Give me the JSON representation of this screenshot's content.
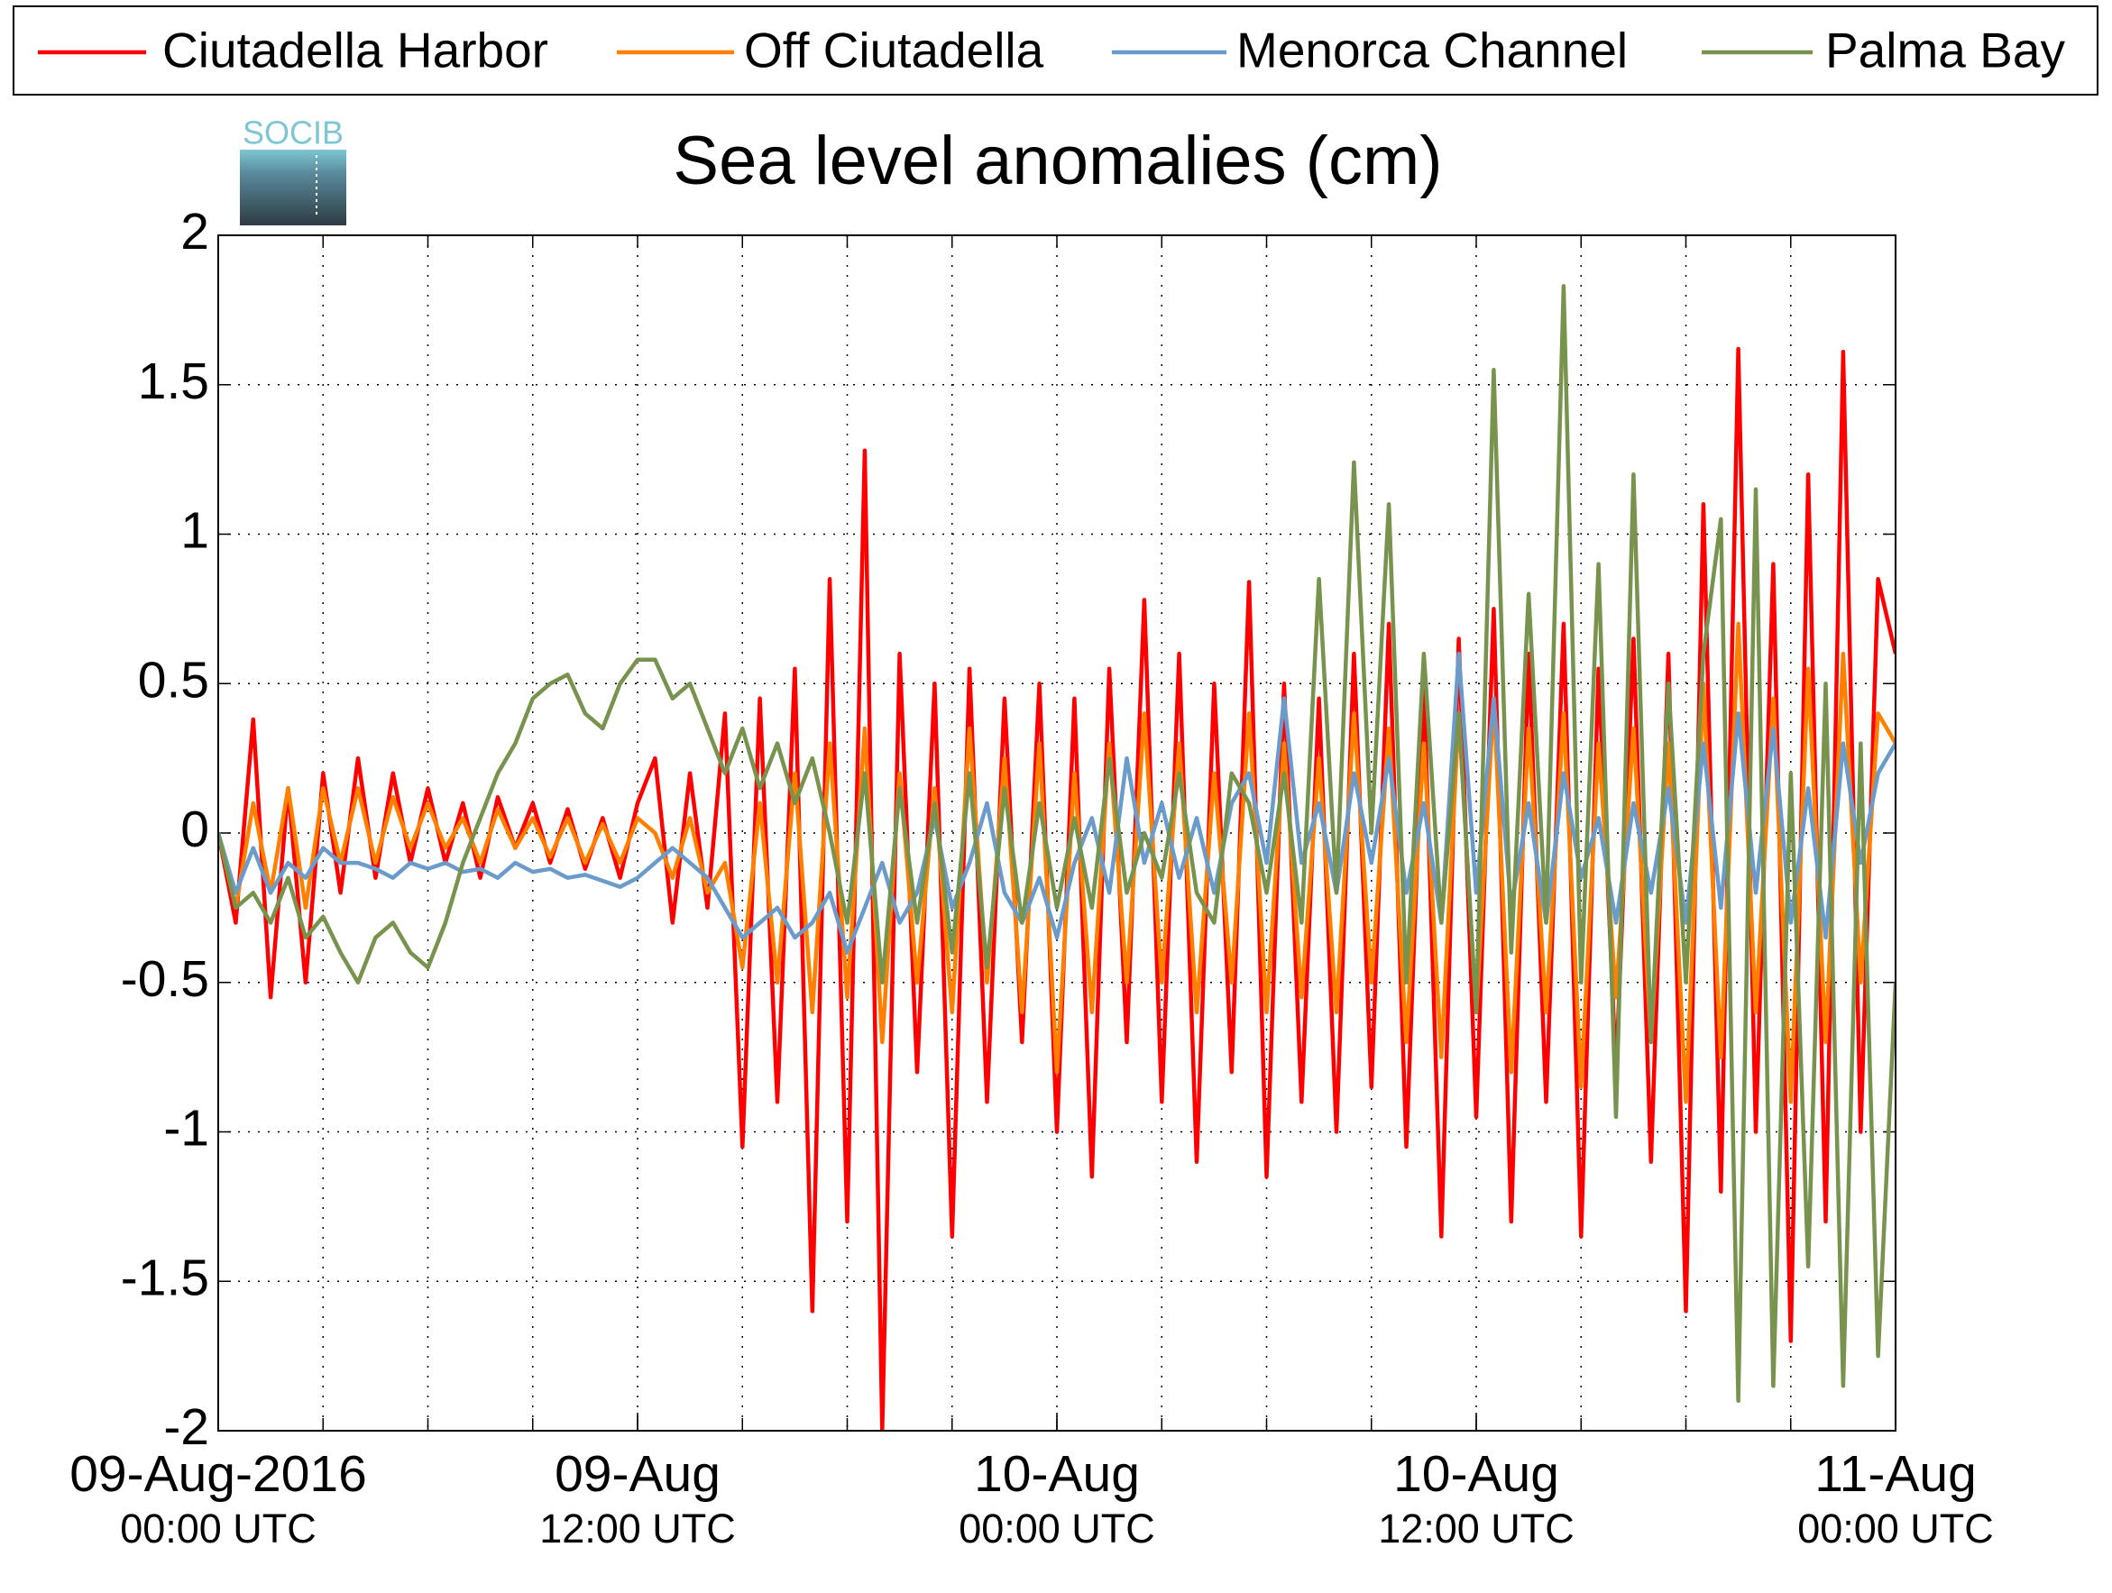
{
  "chart_data": {
    "type": "line",
    "title": "Sea level anomalies (cm)",
    "logo": "SOCIB",
    "x": [
      "2016-08-09T00:00",
      "2016-08-09T00:30",
      "2016-08-09T01:00",
      "2016-08-09T01:30",
      "2016-08-09T02:00",
      "2016-08-09T02:30",
      "2016-08-09T03:00",
      "2016-08-09T03:30",
      "2016-08-09T04:00",
      "2016-08-09T04:30",
      "2016-08-09T05:00",
      "2016-08-09T05:30",
      "2016-08-09T06:00",
      "2016-08-09T06:30",
      "2016-08-09T07:00",
      "2016-08-09T07:30",
      "2016-08-09T08:00",
      "2016-08-09T08:30",
      "2016-08-09T09:00",
      "2016-08-09T09:30",
      "2016-08-09T10:00",
      "2016-08-09T10:30",
      "2016-08-09T11:00",
      "2016-08-09T11:30",
      "2016-08-09T12:00",
      "2016-08-09T12:30",
      "2016-08-09T13:00",
      "2016-08-09T13:30",
      "2016-08-09T14:00",
      "2016-08-09T14:30",
      "2016-08-09T15:00",
      "2016-08-09T15:30",
      "2016-08-09T16:00",
      "2016-08-09T16:30",
      "2016-08-09T17:00",
      "2016-08-09T17:30",
      "2016-08-09T18:00",
      "2016-08-09T18:30",
      "2016-08-09T19:00",
      "2016-08-09T19:30",
      "2016-08-09T20:00",
      "2016-08-09T20:30",
      "2016-08-09T21:00",
      "2016-08-09T21:30",
      "2016-08-09T22:00",
      "2016-08-09T22:30",
      "2016-08-09T23:00",
      "2016-08-09T23:30",
      "2016-08-10T00:00",
      "2016-08-10T00:30",
      "2016-08-10T01:00",
      "2016-08-10T01:30",
      "2016-08-10T02:00",
      "2016-08-10T02:30",
      "2016-08-10T03:00",
      "2016-08-10T03:30",
      "2016-08-10T04:00",
      "2016-08-10T04:30",
      "2016-08-10T05:00",
      "2016-08-10T05:30",
      "2016-08-10T06:00",
      "2016-08-10T06:30",
      "2016-08-10T07:00",
      "2016-08-10T07:30",
      "2016-08-10T08:00",
      "2016-08-10T08:30",
      "2016-08-10T09:00",
      "2016-08-10T09:30",
      "2016-08-10T10:00",
      "2016-08-10T10:30",
      "2016-08-10T11:00",
      "2016-08-10T11:30",
      "2016-08-10T12:00",
      "2016-08-10T12:30",
      "2016-08-10T13:00",
      "2016-08-10T13:30",
      "2016-08-10T14:00",
      "2016-08-10T14:30",
      "2016-08-10T15:00",
      "2016-08-10T15:30",
      "2016-08-10T16:00",
      "2016-08-10T16:30",
      "2016-08-10T17:00",
      "2016-08-10T17:30",
      "2016-08-10T18:00",
      "2016-08-10T18:30",
      "2016-08-10T19:00",
      "2016-08-10T19:30",
      "2016-08-10T20:00",
      "2016-08-10T20:30",
      "2016-08-10T21:00",
      "2016-08-10T21:30",
      "2016-08-10T22:00",
      "2016-08-10T22:30",
      "2016-08-10T23:00",
      "2016-08-10T23:30",
      "2016-08-11T00:00"
    ],
    "series": [
      {
        "name": "Ciutadella Harbor",
        "color": "#ff0000",
        "values": [
          0,
          -0.3,
          0.38,
          -0.55,
          0.15,
          -0.5,
          0.2,
          -0.2,
          0.25,
          -0.15,
          0.2,
          -0.1,
          0.15,
          -0.1,
          0.1,
          -0.15,
          0.12,
          -0.05,
          0.1,
          -0.1,
          0.08,
          -0.12,
          0.05,
          -0.15,
          0.1,
          0.25,
          -0.3,
          0.2,
          -0.25,
          0.4,
          -1.05,
          0.45,
          -0.9,
          0.55,
          -1.6,
          0.85,
          -1.3,
          1.28,
          -2.0,
          0.6,
          -0.8,
          0.5,
          -1.35,
          0.55,
          -0.9,
          0.45,
          -0.7,
          0.5,
          -1.0,
          0.45,
          -1.15,
          0.55,
          -0.7,
          0.78,
          -0.9,
          0.6,
          -1.1,
          0.5,
          -0.8,
          0.84,
          -1.15,
          0.5,
          -0.9,
          0.45,
          -1.0,
          0.6,
          -0.85,
          0.7,
          -1.05,
          0.5,
          -1.35,
          0.65,
          -0.95,
          0.75,
          -1.3,
          0.6,
          -0.9,
          0.7,
          -1.35,
          0.55,
          -0.8,
          0.65,
          -1.1,
          0.6,
          -1.6,
          1.1,
          -1.2,
          1.62,
          -1.0,
          0.9,
          -1.7,
          1.2,
          -1.3,
          1.61,
          -1.0,
          0.85,
          0.6
        ]
      },
      {
        "name": "Off Ciutadella",
        "color": "#ff8000",
        "values": [
          0,
          -0.25,
          0.1,
          -0.2,
          0.15,
          -0.25,
          0.15,
          -0.1,
          0.15,
          -0.1,
          0.12,
          -0.05,
          0.1,
          -0.05,
          0.05,
          -0.1,
          0.08,
          -0.05,
          0.05,
          -0.08,
          0.05,
          -0.1,
          0.03,
          -0.1,
          0.05,
          0,
          -0.15,
          0.05,
          -0.2,
          -0.1,
          -0.45,
          0.1,
          -0.5,
          0.2,
          -0.6,
          0.3,
          -0.55,
          0.35,
          -0.7,
          0.2,
          -0.5,
          0.15,
          -0.6,
          0.35,
          -0.5,
          0.25,
          -0.6,
          0.3,
          -0.8,
          0.2,
          -0.6,
          0.3,
          -0.5,
          0.4,
          -0.5,
          0.3,
          -0.6,
          0.2,
          -0.5,
          0.4,
          -0.6,
          0.3,
          -0.55,
          0.25,
          -0.6,
          0.4,
          -0.5,
          0.35,
          -0.7,
          0.3,
          -0.75,
          0.4,
          -0.6,
          0.45,
          -0.8,
          0.35,
          -0.6,
          0.4,
          -0.85,
          0.3,
          -0.55,
          0.35,
          -0.7,
          0.3,
          -0.9,
          0.5,
          -0.75,
          0.7,
          -0.6,
          0.45,
          -0.9,
          0.55,
          -0.7,
          0.6,
          -0.5,
          0.4,
          0.3
        ]
      },
      {
        "name": "Menorca Channel",
        "color": "#6a9bcb",
        "values": [
          0,
          -0.2,
          -0.05,
          -0.2,
          -0.1,
          -0.15,
          -0.05,
          -0.1,
          -0.1,
          -0.12,
          -0.15,
          -0.1,
          -0.12,
          -0.1,
          -0.13,
          -0.12,
          -0.15,
          -0.1,
          -0.13,
          -0.12,
          -0.15,
          -0.14,
          -0.16,
          -0.18,
          -0.15,
          -0.1,
          -0.05,
          -0.1,
          -0.15,
          -0.25,
          -0.35,
          -0.3,
          -0.25,
          -0.35,
          -0.3,
          -0.2,
          -0.4,
          -0.25,
          -0.1,
          -0.3,
          -0.2,
          0.05,
          -0.25,
          -0.1,
          0.1,
          -0.2,
          -0.3,
          -0.15,
          -0.35,
          -0.1,
          0.05,
          -0.2,
          0.25,
          -0.1,
          0.1,
          -0.15,
          0.05,
          -0.2,
          0.1,
          0.2,
          -0.1,
          0.45,
          -0.1,
          0.1,
          -0.2,
          0.2,
          -0.1,
          0.25,
          -0.2,
          0.1,
          -0.3,
          0.6,
          -0.2,
          0.45,
          -0.25,
          0.1,
          -0.3,
          0.2,
          -0.15,
          0.05,
          -0.3,
          0.1,
          -0.2,
          0.15,
          -0.3,
          0.3,
          -0.25,
          0.4,
          -0.2,
          0.35,
          -0.3,
          0.15,
          -0.35,
          0.3,
          -0.1,
          0.2,
          0.3
        ]
      },
      {
        "name": "Palma Bay",
        "color": "#77934d",
        "values": [
          0,
          -0.25,
          -0.2,
          -0.3,
          -0.15,
          -0.35,
          -0.28,
          -0.4,
          -0.5,
          -0.35,
          -0.3,
          -0.4,
          -0.45,
          -0.3,
          -0.1,
          0.05,
          0.2,
          0.3,
          0.45,
          0.5,
          0.53,
          0.4,
          0.35,
          0.5,
          0.58,
          0.58,
          0.45,
          0.5,
          0.35,
          0.2,
          0.35,
          0.15,
          0.3,
          0.1,
          0.25,
          0.0,
          -0.3,
          0.2,
          -0.5,
          0.15,
          -0.3,
          0.1,
          -0.4,
          0.2,
          -0.45,
          0.15,
          -0.3,
          0.1,
          -0.25,
          0.05,
          -0.25,
          0.25,
          -0.2,
          0.0,
          -0.15,
          0.2,
          -0.2,
          -0.3,
          0.2,
          0.1,
          -0.2,
          0.2,
          -0.3,
          0.85,
          -0.2,
          1.24,
          0.0,
          1.1,
          -0.5,
          0.6,
          -0.3,
          0.4,
          -0.6,
          1.55,
          -0.4,
          0.8,
          -0.3,
          1.83,
          -0.5,
          0.9,
          -0.95,
          1.2,
          -0.7,
          0.5,
          -0.5,
          0.6,
          1.05,
          -1.9,
          1.15,
          -1.85,
          0.2,
          -1.45,
          0.5,
          -1.85,
          0.3,
          -1.75,
          -0.5
        ]
      }
    ],
    "xlim": [
      "2016-08-09T00:00",
      "2016-08-11T00:00"
    ],
    "xticks": [
      {
        "value": "2016-08-09T00:00",
        "label": "09-Aug-2016",
        "sublabel": "00:00 UTC"
      },
      {
        "value": "2016-08-09T12:00",
        "label": "09-Aug",
        "sublabel": "12:00 UTC"
      },
      {
        "value": "2016-08-10T00:00",
        "label": "10-Aug",
        "sublabel": "00:00 UTC"
      },
      {
        "value": "2016-08-10T12:00",
        "label": "10-Aug",
        "sublabel": "12:00 UTC"
      },
      {
        "value": "2016-08-11T00:00",
        "label": "11-Aug",
        "sublabel": "00:00 UTC"
      }
    ],
    "xminorticks": [
      "2016-08-09T00:00",
      "2016-08-09T03:00",
      "2016-08-09T06:00",
      "2016-08-09T09:00",
      "2016-08-09T12:00",
      "2016-08-09T15:00",
      "2016-08-09T18:00",
      "2016-08-09T21:00",
      "2016-08-10T00:00",
      "2016-08-10T03:00",
      "2016-08-10T06:00",
      "2016-08-10T09:00",
      "2016-08-10T12:00",
      "2016-08-10T15:00",
      "2016-08-10T18:00",
      "2016-08-10T21:00",
      "2016-08-11T00:00"
    ],
    "ylim": [
      -2,
      2
    ],
    "yticks": [
      -2,
      -1.5,
      -1,
      -0.5,
      0,
      0.5,
      1,
      1.5,
      2
    ],
    "grid": true,
    "legend": "top"
  }
}
